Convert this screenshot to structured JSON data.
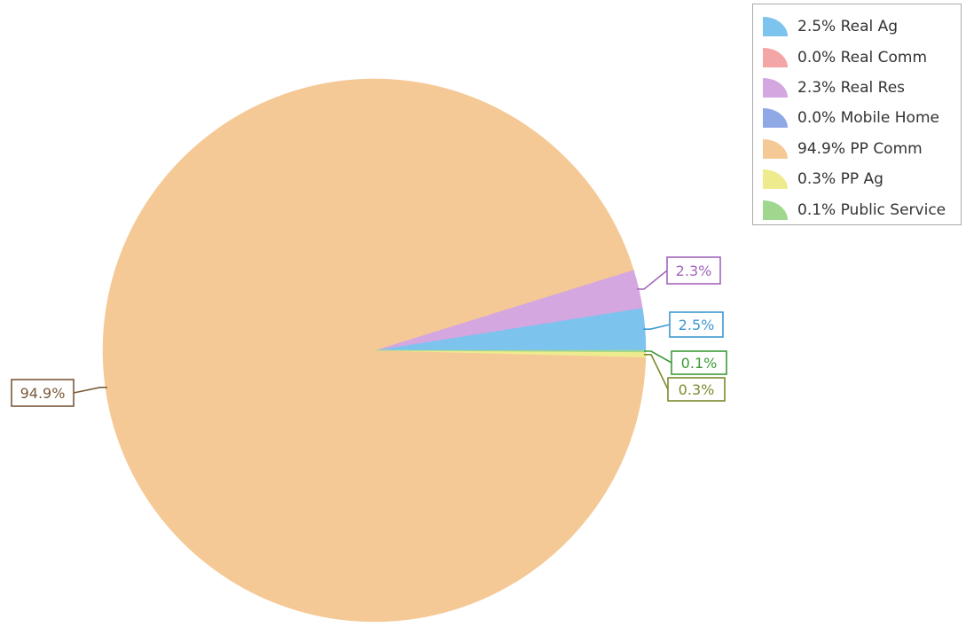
{
  "chart_data": {
    "type": "pie",
    "slices": [
      {
        "label": "Real Ag",
        "value": 2.5,
        "label_text": "2.5%",
        "legend_text": "2.5% Real Ag",
        "color": "#7cc3ee",
        "dark": "#3c97d2"
      },
      {
        "label": "Real Comm",
        "value": 0.0,
        "label_text": "0.0%",
        "legend_text": "0.0% Real Comm",
        "color": "#f4a5a5",
        "dark": "#de7a7a"
      },
      {
        "label": "Real Res",
        "value": 2.3,
        "label_text": "2.3%",
        "legend_text": "2.3% Real Res",
        "color": "#d4a7e0",
        "dark": "#a366ba"
      },
      {
        "label": "Mobile Home",
        "value": 0.0,
        "label_text": "0.0%",
        "legend_text": "0.0% Mobile Home",
        "color": "#8fa9e6",
        "dark": "#5b7bd0"
      },
      {
        "label": "PP Comm",
        "value": 94.9,
        "label_text": "94.9%",
        "legend_text": "94.9% PP Comm",
        "color": "#f5c995",
        "dark": "#7a5a38"
      },
      {
        "label": "PP Ag",
        "value": 0.3,
        "label_text": "0.3%",
        "legend_text": "0.3% PP Ag",
        "color": "#eeeb8f",
        "dark": "#7a8a2e"
      },
      {
        "label": "Public Service",
        "value": 0.1,
        "label_text": "0.1%",
        "legend_text": "0.1% Public Service",
        "color": "#9fd78e",
        "dark": "#3e9a38"
      }
    ],
    "legend_position": "top-right"
  }
}
